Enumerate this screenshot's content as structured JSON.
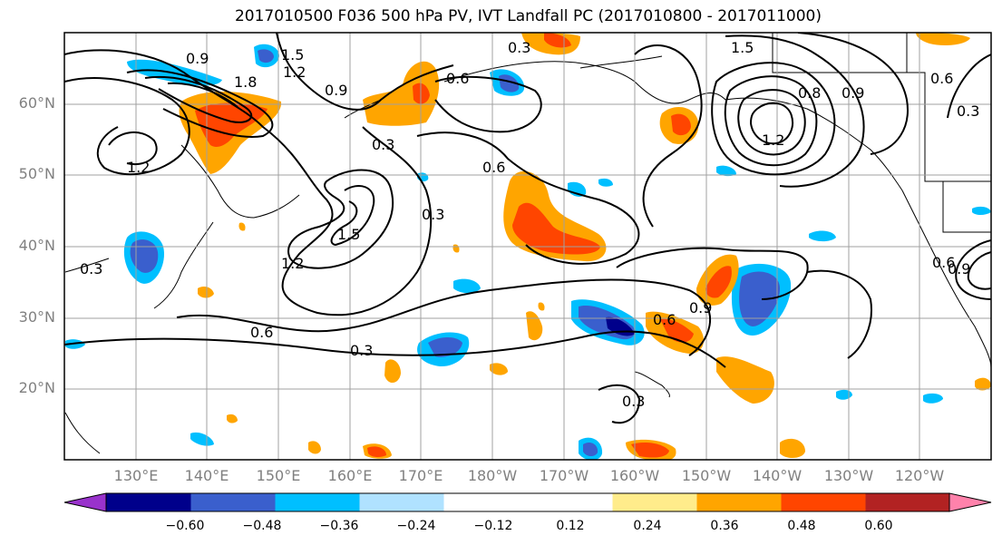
{
  "title": "2017010500 F036 500 hPa PV, IVT Landfall PC (2017010800 - 2017011000)",
  "lat_labels": [
    "60°N",
    "50°N",
    "40°N",
    "30°N",
    "20°N"
  ],
  "lon_labels": [
    "130°E",
    "140°E",
    "150°E",
    "160°E",
    "170°E",
    "180°W",
    "170°W",
    "160°W",
    "150°W",
    "140°W",
    "130°W",
    "120°W"
  ],
  "colorbar": {
    "colors": [
      "#9932cc",
      "#00008b",
      "#3a5fcd",
      "#00bfff",
      "#b0e2ff",
      "#ffffff",
      "#ffffff",
      "#ffec8b",
      "#ffa500",
      "#ff4500",
      "#b22222",
      "#ff82ab"
    ],
    "tick_labels": [
      "−0.60",
      "−0.48",
      "−0.36",
      "−0.24",
      "−0.12",
      "0.12",
      "0.24",
      "0.36",
      "0.48",
      "0.60"
    ]
  },
  "contour_labels": [
    "0.9",
    "1.5",
    "1.2",
    "1.8",
    "0.9",
    "1.2",
    "0.3",
    "0.6",
    "0.3",
    "0.6",
    "0.3",
    "1.5",
    "1.2",
    "0.6",
    "0.3",
    "0.3",
    "0.6",
    "0.9",
    "0.3",
    "1.5",
    "1.2",
    "0.8",
    "0.9",
    "0.6",
    "0.3",
    "0.6",
    "0.9"
  ]
}
